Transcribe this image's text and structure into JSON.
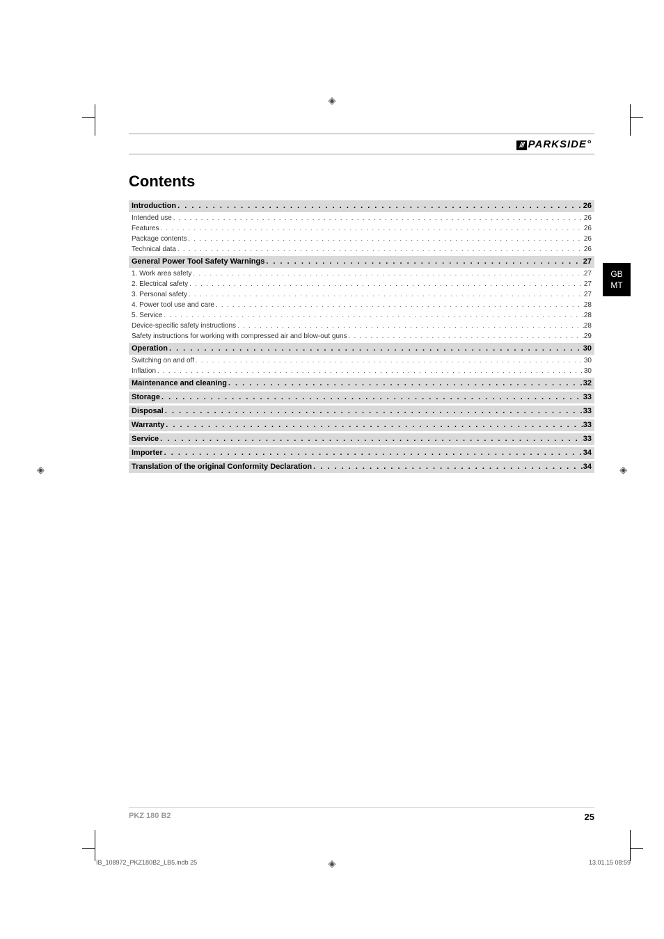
{
  "brand_prefix": "///",
  "brand_name": "PARKSIDE",
  "title": "Contents",
  "side_tab": [
    "GB",
    "MT"
  ],
  "toc": [
    {
      "type": "section",
      "label": "Introduction",
      "page": "26",
      "entries": [
        {
          "label": "Intended use",
          "page": "26"
        },
        {
          "label": "Features",
          "page": "26"
        },
        {
          "label": "Package contents",
          "page": "26"
        },
        {
          "label": "Technical data",
          "page": "26"
        }
      ]
    },
    {
      "type": "section",
      "label": "General Power Tool Safety Warnings",
      "page": "27",
      "entries": [
        {
          "label": "1. Work area safety",
          "page": "27"
        },
        {
          "label": "2. Electrical safety",
          "page": "27"
        },
        {
          "label": "3. Personal safety",
          "page": "27"
        },
        {
          "label": "4. Power tool use and care",
          "page": "28"
        },
        {
          "label": "5. Service",
          "page": "28"
        },
        {
          "label": "Device-specific safety instructions",
          "page": "28"
        },
        {
          "label": "Safety instructions for working with compressed air and blow-out guns",
          "page": "29"
        }
      ]
    },
    {
      "type": "section",
      "label": "Operation",
      "page": "30",
      "entries": [
        {
          "label": "Switching on and off",
          "page": "30"
        },
        {
          "label": "Inflation",
          "page": "30"
        }
      ]
    },
    {
      "type": "section",
      "label": "Maintenance and cleaning",
      "page": "32",
      "entries": []
    },
    {
      "type": "section",
      "label": "Storage",
      "page": "33",
      "entries": []
    },
    {
      "type": "section",
      "label": "Disposal",
      "page": "33",
      "entries": []
    },
    {
      "type": "section",
      "label": "Warranty",
      "page": "33",
      "entries": []
    },
    {
      "type": "section",
      "label": "Service",
      "page": "33",
      "entries": []
    },
    {
      "type": "section",
      "label": "Importer",
      "page": "34",
      "entries": []
    },
    {
      "type": "section",
      "label": "Translation of the original Conformity Declaration",
      "page": "34",
      "entries": []
    }
  ],
  "footer_model": "PKZ 180 B2",
  "footer_page": "25",
  "print_left": "IB_108972_PKZ180B2_LB5.indb   25",
  "print_right": "13.01.15   08:59",
  "colors": {
    "section_bg": "#d9d9d9",
    "tab_bg": "#000000",
    "tab_fg": "#ffffff",
    "text": "#000000",
    "muted": "#999999"
  }
}
